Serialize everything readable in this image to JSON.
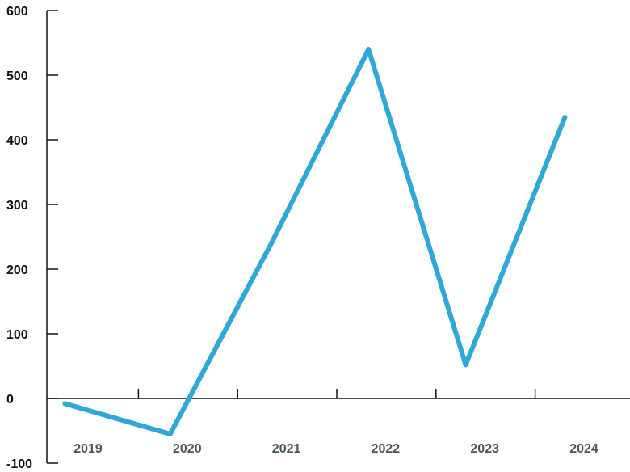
{
  "chart_data": {
    "type": "line",
    "title": "",
    "xlabel": "",
    "ylabel": "",
    "categories": [
      "2019",
      "2020",
      "2021",
      "2022",
      "2023",
      "2024"
    ],
    "series": [
      {
        "name": "",
        "x": [
          2018.76,
          2019.82,
          2020.84,
          2021.82,
          2022.8,
          2023.8
        ],
        "y": [
          -8,
          -55,
          240,
          540,
          52,
          435
        ]
      }
    ],
    "ylim": [
      -100,
      600
    ],
    "yticks": [
      "600",
      "500",
      "400",
      "300",
      "200",
      "100",
      "0",
      "-100"
    ],
    "grid": false,
    "legend": "none",
    "colors": {
      "line": "#2ea8d8",
      "axis": "#111111",
      "text": "#111111",
      "category_text": "#4a5560"
    }
  }
}
